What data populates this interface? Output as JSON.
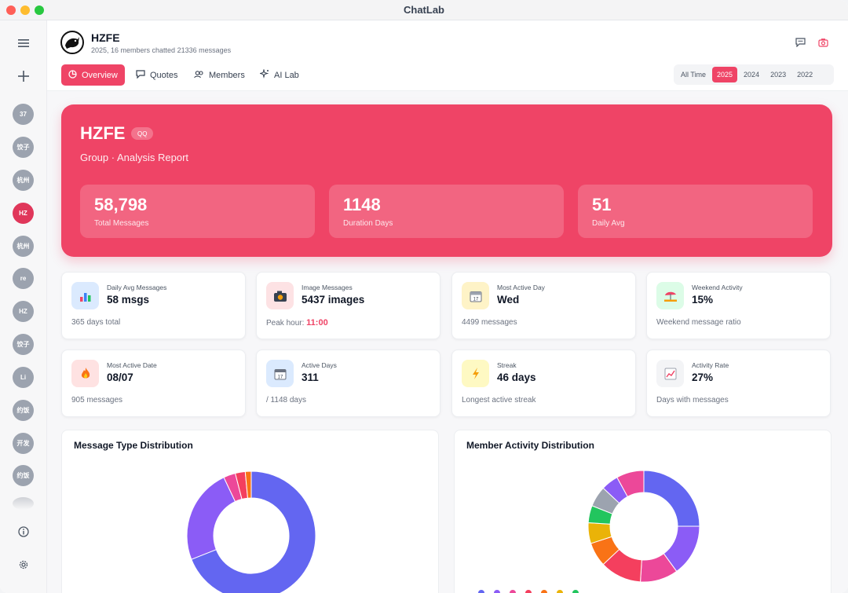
{
  "app": {
    "title": "ChatLab"
  },
  "sidebar": {
    "avatars": [
      "37",
      "饺子",
      "杭州",
      "HZ",
      "杭州",
      "re",
      "HZ",
      "饺子",
      "Li",
      "约饭",
      "开发",
      "约饭"
    ]
  },
  "header": {
    "group_name": "HZFE",
    "subtitle": "2025, 16 members chatted 21336 messages",
    "tabs": [
      "Overview",
      "Quotes",
      "Members",
      "AI Lab"
    ],
    "years": [
      "All Time",
      "2025",
      "2024",
      "2023",
      "2022"
    ]
  },
  "hero": {
    "title": "HZFE",
    "badge": "QQ",
    "subtitle": "Group · Analysis Report",
    "stats": [
      {
        "value": "58,798",
        "label": "Total Messages"
      },
      {
        "value": "1148",
        "label": "Duration Days"
      },
      {
        "value": "51",
        "label": "Daily Avg"
      }
    ]
  },
  "cards": [
    {
      "label": "Daily Avg Messages",
      "value": "58 msgs",
      "foot": "365 days total",
      "icon": "bar-chart-icon"
    },
    {
      "label": "Image Messages",
      "value": "5437 images",
      "foot": "Peak hour: ",
      "foot_highlight": "11:00",
      "icon": "camera-icon"
    },
    {
      "label": "Most Active Day",
      "value": "Wed",
      "foot": "4499 messages",
      "icon": "calendar-icon"
    },
    {
      "label": "Weekend Activity",
      "value": "15%",
      "foot": "Weekend message ratio",
      "icon": "beach-icon"
    },
    {
      "label": "Most Active Date",
      "value": "08/07",
      "foot": "905 messages",
      "icon": "fire-icon"
    },
    {
      "label": "Active Days",
      "value": "311",
      "foot": "/ 1148 days",
      "icon": "date-icon"
    },
    {
      "label": "Streak",
      "value": "46 days",
      "foot": "Longest active streak",
      "icon": "lightning-icon"
    },
    {
      "label": "Activity Rate",
      "value": "27%",
      "foot": "Days with messages",
      "icon": "trend-icon"
    }
  ],
  "panels": {
    "left_title": "Message Type Distribution",
    "right_title": "Member Activity Distribution"
  },
  "chart_data": [
    {
      "type": "pie",
      "title": "Message Type Distribution",
      "slices": [
        {
          "value": 0.69,
          "color": "#6366f1"
        },
        {
          "value": 0.24,
          "color": "#8b5cf6"
        },
        {
          "value": 0.03,
          "color": "#ec4899"
        },
        {
          "value": 0.025,
          "color": "#f43f5e"
        },
        {
          "value": 0.015,
          "color": "#f97316"
        }
      ]
    },
    {
      "type": "pie",
      "title": "Member Activity Distribution",
      "slices": [
        {
          "value": 0.25,
          "color": "#6366f1"
        },
        {
          "value": 0.15,
          "color": "#8b5cf6"
        },
        {
          "value": 0.11,
          "color": "#ec4899"
        },
        {
          "value": 0.12,
          "color": "#f43f5e"
        },
        {
          "value": 0.07,
          "color": "#f97316"
        },
        {
          "value": 0.06,
          "color": "#eab308"
        },
        {
          "value": 0.05,
          "color": "#22c55e"
        },
        {
          "value": 0.06,
          "color": "#9ca3af"
        },
        {
          "value": 0.05,
          "color": "#8b5cf6"
        },
        {
          "value": 0.08,
          "color": "#ec4899"
        }
      ]
    }
  ]
}
